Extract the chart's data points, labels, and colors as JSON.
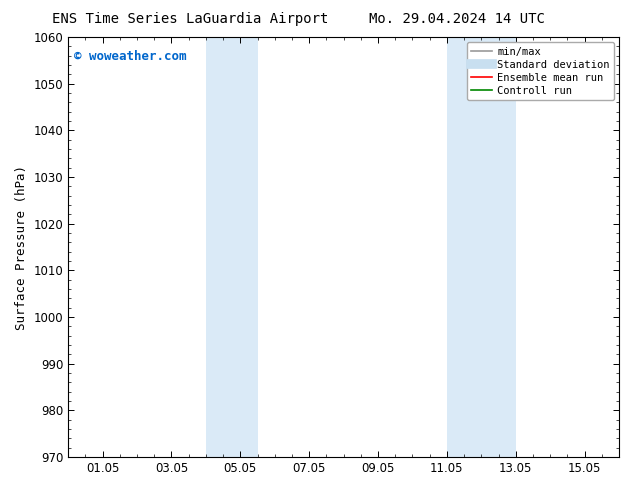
{
  "title_left": "ENS Time Series LaGuardia Airport",
  "title_right": "Mo. 29.04.2024 14 UTC",
  "ylabel": "Surface Pressure (hPa)",
  "ylim": [
    970,
    1060
  ],
  "yticks": [
    970,
    980,
    990,
    1000,
    1010,
    1020,
    1030,
    1040,
    1050,
    1060
  ],
  "xlabel_ticks": [
    "01.05",
    "03.05",
    "05.05",
    "07.05",
    "09.05",
    "11.05",
    "13.05",
    "15.05"
  ],
  "x_tick_positions": [
    1,
    3,
    5,
    7,
    9,
    11,
    13,
    15
  ],
  "x_min": 0.0,
  "x_max": 16.0,
  "watermark": "© woweather.com",
  "watermark_color": "#0066cc",
  "background_color": "#ffffff",
  "plot_bg_color": "#ffffff",
  "shaded_bands": [
    {
      "xstart": 4.0,
      "xend": 5.5,
      "color": "#daeaf7"
    },
    {
      "xstart": 11.0,
      "xend": 13.0,
      "color": "#daeaf7"
    }
  ],
  "legend_entries": [
    {
      "label": "min/max",
      "color": "#999999",
      "lw": 1.2,
      "style": "solid"
    },
    {
      "label": "Standard deviation",
      "color": "#c8dff0",
      "lw": 7,
      "style": "solid"
    },
    {
      "label": "Ensemble mean run",
      "color": "#ff0000",
      "lw": 1.2,
      "style": "solid"
    },
    {
      "label": "Controll run",
      "color": "#008800",
      "lw": 1.2,
      "style": "solid"
    }
  ],
  "tick_label_fontsize": 8.5,
  "title_fontsize": 10,
  "ylabel_fontsize": 9,
  "watermark_fontsize": 9,
  "legend_fontsize": 7.5
}
